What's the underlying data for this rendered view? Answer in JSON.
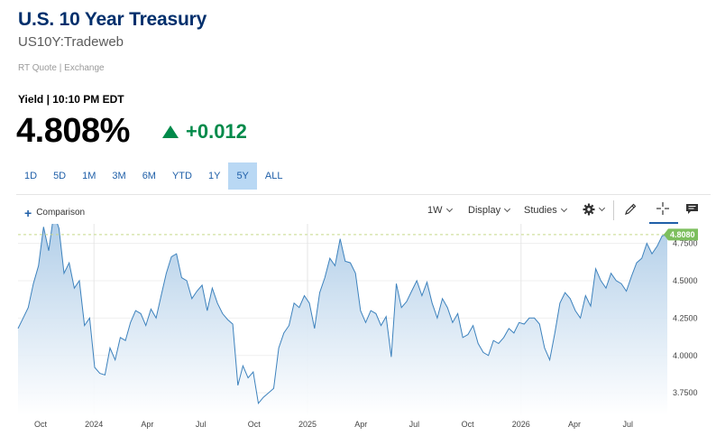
{
  "header": {
    "title": "U.S. 10 Year Treasury",
    "symbol": "US10Y:Tradeweb",
    "source": "RT Quote | Exchange",
    "yield_label": "Yield | 10:10 PM EDT",
    "price": "4.808%",
    "change": "+0.012"
  },
  "ranges": [
    {
      "label": "1D"
    },
    {
      "label": "5D"
    },
    {
      "label": "1M"
    },
    {
      "label": "3M"
    },
    {
      "label": "6M"
    },
    {
      "label": "YTD"
    },
    {
      "label": "1Y"
    },
    {
      "label": "5Y",
      "active": true
    },
    {
      "label": "ALL"
    }
  ],
  "toolbar": {
    "comparison": "Comparison",
    "interval": "1W",
    "display": "Display",
    "studies": "Studies",
    "icons": [
      "gear-icon",
      "pencil-icon",
      "crosshair-icon",
      "comment-icon"
    ]
  },
  "colors": {
    "accent": "#1f5fa8",
    "positive": "#008a4a",
    "title": "#002f6c",
    "line": "#3d82bd",
    "current_tag": "#7dbf5e"
  },
  "chart_data": {
    "type": "area",
    "y_ticks": [
      "4.7500",
      "4.5000",
      "4.2500",
      "4.0000",
      "3.7500"
    ],
    "x_ticks": [
      "Oct",
      "2024",
      "Apr",
      "Jul",
      "Oct",
      "2025",
      "Apr",
      "Jul",
      "Oct",
      "2026",
      "Apr",
      "Jul"
    ],
    "current_value_label": "4.8080",
    "current_value": 4.808,
    "ylim": [
      3.6,
      4.88
    ],
    "values": [
      4.18,
      4.25,
      4.32,
      4.48,
      4.6,
      4.86,
      4.7,
      4.95,
      4.85,
      4.55,
      4.62,
      4.45,
      4.5,
      4.2,
      4.25,
      3.92,
      3.88,
      3.87,
      4.05,
      3.97,
      4.12,
      4.1,
      4.22,
      4.3,
      4.28,
      4.2,
      4.31,
      4.25,
      4.4,
      4.55,
      4.66,
      4.68,
      4.52,
      4.5,
      4.38,
      4.43,
      4.47,
      4.3,
      4.45,
      4.35,
      4.28,
      4.24,
      4.21,
      3.8,
      3.93,
      3.85,
      3.89,
      3.68,
      3.72,
      3.75,
      3.78,
      4.05,
      4.15,
      4.2,
      4.35,
      4.32,
      4.4,
      4.35,
      4.18,
      4.42,
      4.52,
      4.65,
      4.6,
      4.78,
      4.63,
      4.62,
      4.55,
      4.3,
      4.22,
      4.3,
      4.28,
      4.2,
      4.26,
      3.99,
      4.48,
      4.32,
      4.36,
      4.43,
      4.5,
      4.4,
      4.49,
      4.35,
      4.25,
      4.38,
      4.32,
      4.22,
      4.28,
      4.12,
      4.14,
      4.2,
      4.08,
      4.02,
      4.0,
      4.1,
      4.08,
      4.12,
      4.18,
      4.15,
      4.22,
      4.21,
      4.25,
      4.25,
      4.21,
      4.05,
      3.97,
      4.15,
      4.35,
      4.42,
      4.38,
      4.3,
      4.25,
      4.4,
      4.33,
      4.58,
      4.5,
      4.45,
      4.55,
      4.5,
      4.48,
      4.43,
      4.53,
      4.62,
      4.65,
      4.75,
      4.68,
      4.73,
      4.8,
      4.808
    ]
  }
}
